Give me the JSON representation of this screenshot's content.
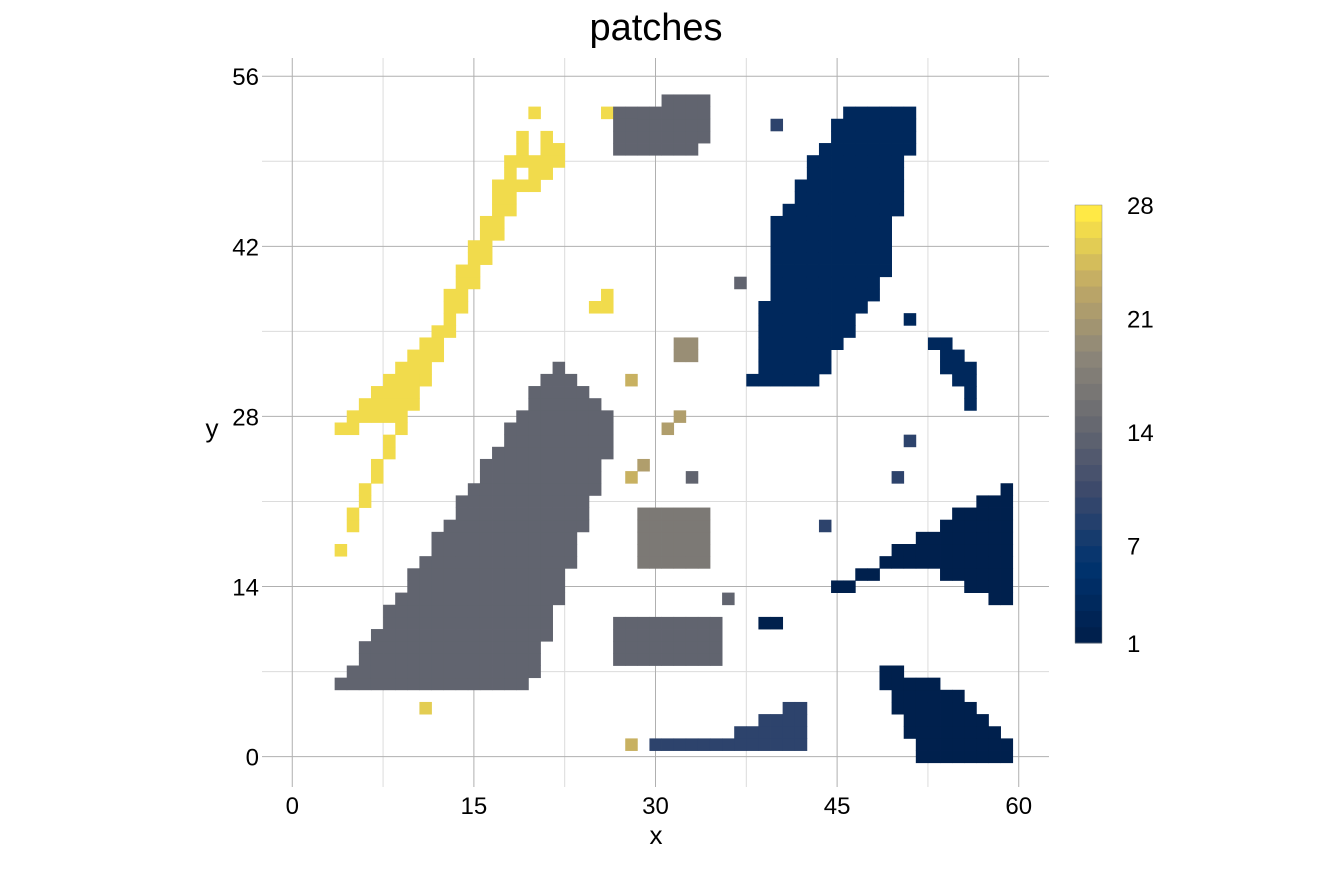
{
  "chart_data": {
    "type": "heatmap",
    "title": "patches",
    "xlabel": "x",
    "ylabel": "y",
    "xlim": [
      -2.5,
      62.5
    ],
    "ylim": [
      -2.5,
      57.5
    ],
    "x_ticks": [
      0,
      15,
      30,
      45,
      60
    ],
    "y_ticks": [
      0,
      14,
      28,
      42,
      56
    ],
    "grid": true,
    "legend": {
      "position": "right",
      "min": 1,
      "max": 28,
      "ticks": [
        1,
        7,
        14,
        21,
        28
      ],
      "colors": [
        "#00204d",
        "#00336f",
        "#3a486b",
        "#666870",
        "#8d8679",
        "#c1aa65",
        "#ffe945"
      ]
    },
    "cells_note_unit": "x, y, patch",
    "cells": [],
    "regions": [
      {
        "patch": 27,
        "x": [
          1,
          3,
          18,
          21
        ],
        "y": [
          11,
          15,
          44,
          56
        ]
      },
      {
        "patch": 27,
        "x": [
          3,
          9,
          12,
          12
        ],
        "y": [
          26,
          28,
          34,
          35
        ]
      },
      {
        "patch": 27,
        "x": [
          19,
          21,
          23,
          21
        ],
        "y": [
          47,
          52,
          49,
          47
        ]
      },
      {
        "patch": 27,
        "x": [
          25,
          27,
          27,
          25
        ],
        "y": [
          36,
          37,
          39,
          37
        ]
      },
      {
        "patch": 27,
        "x": [
          26,
          29,
          29,
          26
        ],
        "y": [
          53,
          54,
          53,
          52
        ]
      },
      {
        "patch": 26,
        "x": [
          11
        ],
        "y": [
          4
        ]
      },
      {
        "patch": 24,
        "x": [
          28,
          28,
          28
        ],
        "y": [
          1,
          23,
          31
        ]
      },
      {
        "patch": 22,
        "x": [
          29,
          31,
          32
        ],
        "y": [
          24,
          27,
          28
        ]
      },
      {
        "patch": 20,
        "x": [
          32,
          34,
          34,
          32
        ],
        "y": [
          33,
          33,
          35,
          35
        ]
      },
      {
        "patch": 17,
        "x": [
          29,
          35,
          35,
          29
        ],
        "y": [
          16,
          16,
          21,
          21
        ]
      },
      {
        "patch": 14,
        "x": [
          4,
          22,
          27,
          20
        ],
        "y": [
          6,
          33,
          27,
          6
        ]
      },
      {
        "patch": 14,
        "x": [
          27,
          36,
          36,
          27
        ],
        "y": [
          8,
          8,
          12,
          12
        ]
      },
      {
        "patch": 14,
        "x": [
          27,
          34,
          35,
          27
        ],
        "y": [
          49,
          50,
          55,
          53
        ]
      },
      {
        "patch": 14,
        "x": [
          33,
          36,
          37
        ],
        "y": [
          23,
          13,
          39
        ]
      },
      {
        "patch": 9,
        "x": [
          30,
          37,
          42,
          43
        ],
        "y": [
          1,
          2,
          5,
          1
        ]
      },
      {
        "patch": 9,
        "x": [
          44,
          50,
          51
        ],
        "y": [
          19,
          23,
          26
        ]
      },
      {
        "patch": 9,
        "x": [
          40
        ],
        "y": [
          52
        ]
      },
      {
        "patch": 3,
        "x": [
          38,
          43,
          49,
          52,
          46,
          40
        ],
        "y": [
          31,
          30,
          39,
          54,
          54,
          44
        ]
      },
      {
        "patch": 3,
        "x": [
          51,
          56,
          57,
          51
        ],
        "y": [
          36,
          33,
          27,
          37
        ]
      },
      {
        "patch": 1,
        "x": [
          39,
          45,
          60,
          60,
          51,
          39
        ],
        "y": [
          10,
          14,
          23,
          12,
          16,
          11
        ]
      },
      {
        "patch": 1,
        "x": [
          48,
          54,
          60,
          60,
          52
        ],
        "y": [
          8,
          6,
          1,
          0,
          0
        ]
      }
    ]
  }
}
